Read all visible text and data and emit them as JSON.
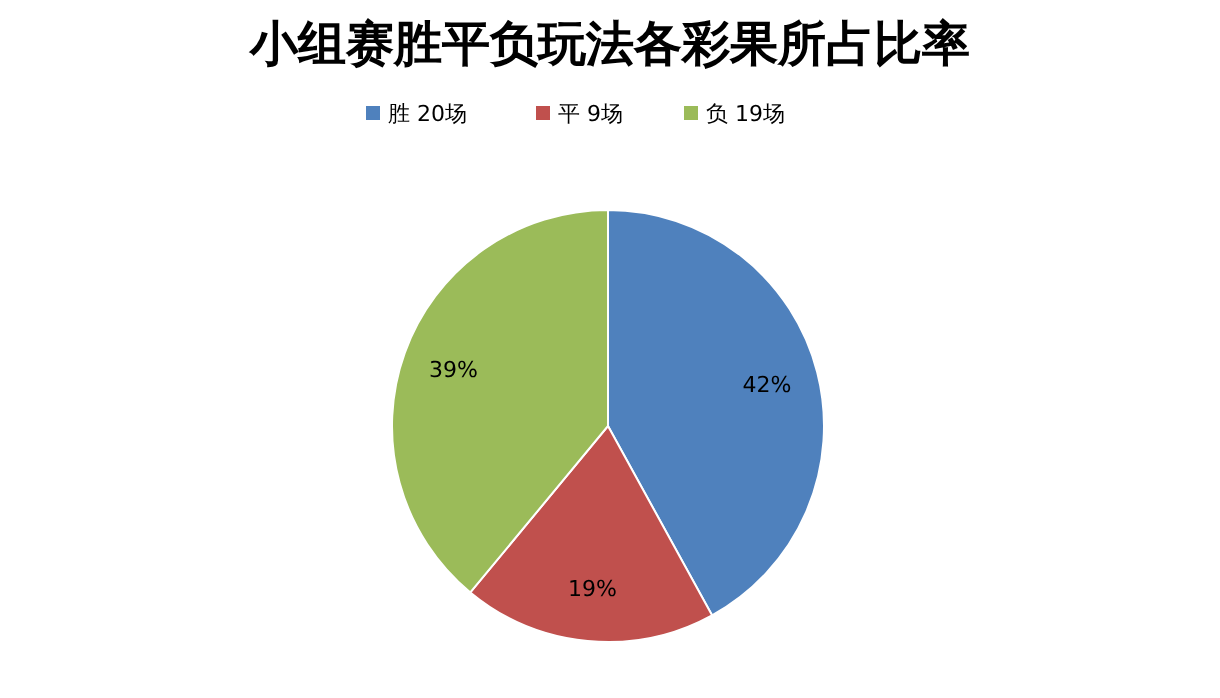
{
  "chart_data": {
    "type": "pie",
    "title": "小组赛胜平负玩法各彩果所占比率",
    "categories": [
      "胜 20场",
      "平 9场",
      "负 19场"
    ],
    "values": [
      42,
      19,
      39
    ],
    "colors": [
      "#4f81bd",
      "#c0504d",
      "#9bbb59"
    ],
    "value_labels": [
      "42%",
      "19%",
      "39%"
    ],
    "legend": "top"
  }
}
